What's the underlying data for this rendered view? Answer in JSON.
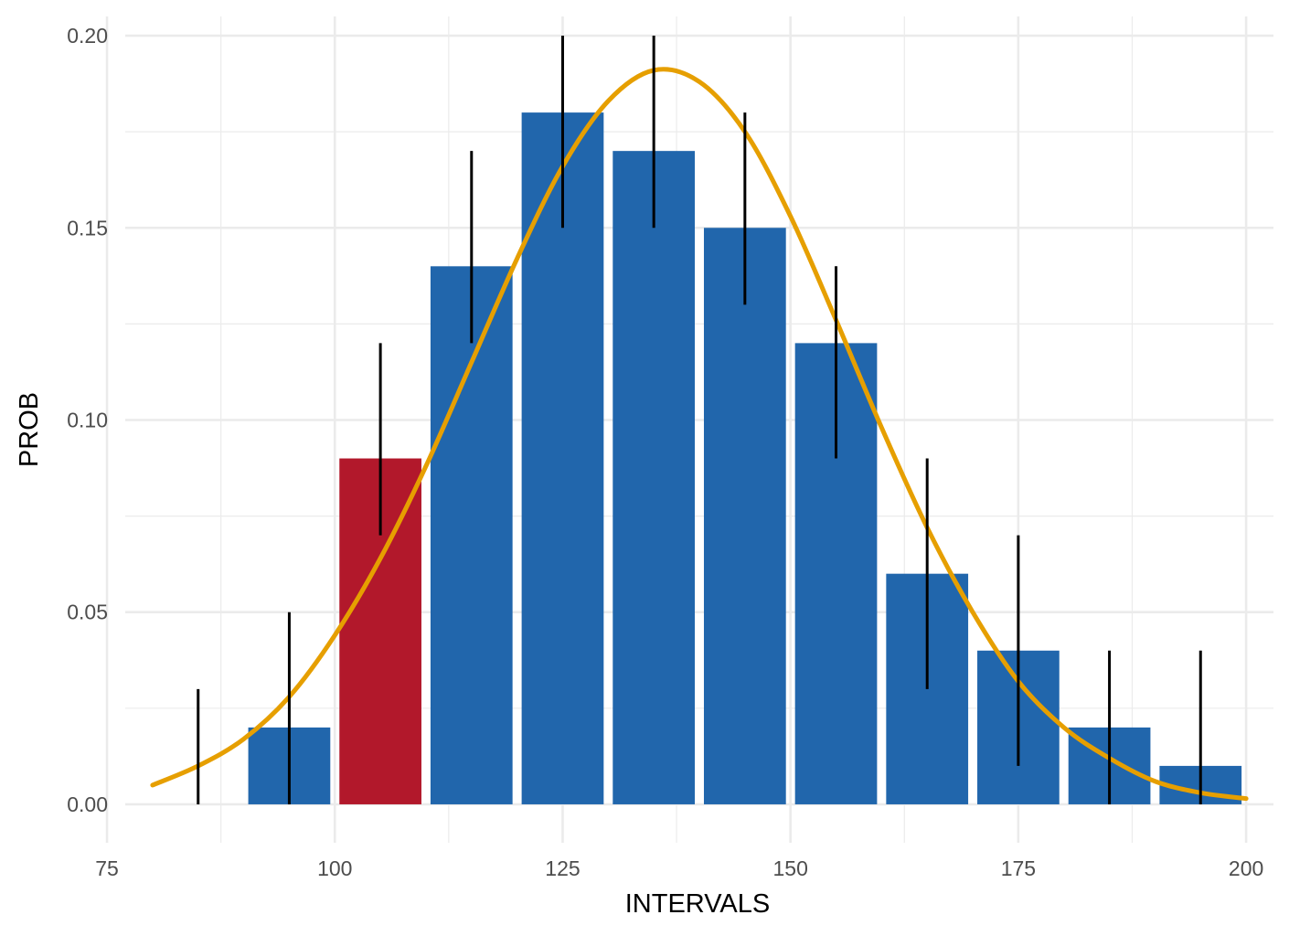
{
  "chart_data": {
    "type": "bar",
    "title": "",
    "xlabel": "INTERVALS",
    "ylabel": "PROB",
    "xlim": [
      77,
      203
    ],
    "ylim": [
      -0.01,
      0.205
    ],
    "grid": true,
    "legend": "none",
    "x_ticks": [
      75,
      100,
      125,
      150,
      175,
      200
    ],
    "x_tick_labels": [
      "75",
      "100",
      "125",
      "150",
      "175",
      "200"
    ],
    "y_ticks": [
      0,
      0.05,
      0.1,
      0.15,
      0.2
    ],
    "y_tick_labels": [
      "0.00",
      "0.05",
      "0.10",
      "0.15",
      "0.20"
    ],
    "bar_width": 9,
    "colors": {
      "bar": "#2166ac",
      "highlight": "#b2182b",
      "curve": "#e69f00",
      "errorbar": "#000000",
      "grid": "#ebebeb"
    },
    "bars": [
      {
        "x": 85,
        "value": 0.0,
        "ymin": 0.0,
        "ymax": 0.03,
        "highlight": false
      },
      {
        "x": 95,
        "value": 0.02,
        "ymin": 0.0,
        "ymax": 0.05,
        "highlight": false
      },
      {
        "x": 105,
        "value": 0.09,
        "ymin": 0.07,
        "ymax": 0.12,
        "highlight": true
      },
      {
        "x": 115,
        "value": 0.14,
        "ymin": 0.12,
        "ymax": 0.17,
        "highlight": false
      },
      {
        "x": 125,
        "value": 0.18,
        "ymin": 0.15,
        "ymax": 0.2,
        "highlight": false
      },
      {
        "x": 135,
        "value": 0.17,
        "ymin": 0.15,
        "ymax": 0.2,
        "highlight": false
      },
      {
        "x": 145,
        "value": 0.15,
        "ymin": 0.13,
        "ymax": 0.18,
        "highlight": false
      },
      {
        "x": 155,
        "value": 0.12,
        "ymin": 0.09,
        "ymax": 0.14,
        "highlight": false
      },
      {
        "x": 165,
        "value": 0.06,
        "ymin": 0.03,
        "ymax": 0.09,
        "highlight": false
      },
      {
        "x": 175,
        "value": 0.04,
        "ymin": 0.01,
        "ymax": 0.07,
        "highlight": false
      },
      {
        "x": 185,
        "value": 0.02,
        "ymin": 0.0,
        "ymax": 0.04,
        "highlight": false
      },
      {
        "x": 195,
        "value": 0.01,
        "ymin": 0.0,
        "ymax": 0.04,
        "highlight": false
      }
    ],
    "curve": {
      "x": [
        80,
        85,
        90,
        95,
        100,
        105,
        110,
        115,
        120,
        125,
        130,
        135,
        140,
        145,
        150,
        155,
        160,
        165,
        170,
        175,
        180,
        185,
        190,
        195,
        200
      ],
      "y": [
        0.005,
        0.01,
        0.017,
        0.028,
        0.044,
        0.064,
        0.088,
        0.115,
        0.142,
        0.166,
        0.183,
        0.191,
        0.188,
        0.175,
        0.153,
        0.126,
        0.098,
        0.072,
        0.05,
        0.032,
        0.02,
        0.012,
        0.006,
        0.003,
        0.0015
      ]
    }
  }
}
